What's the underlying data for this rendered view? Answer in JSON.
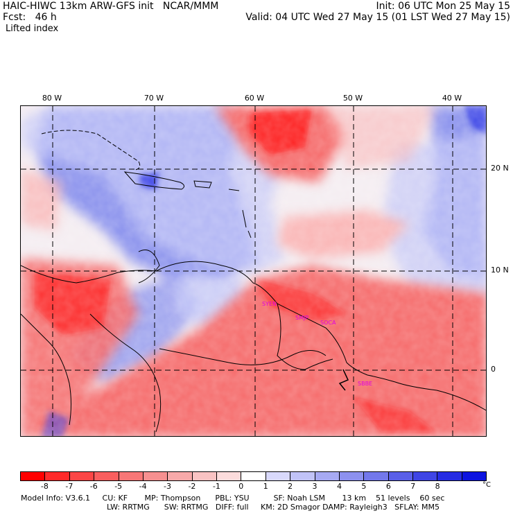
{
  "header": {
    "title_left": "HAIC-HIWC 13km ARW-GFS init   NCAR/MMM",
    "init": "Init: 06 UTC Mon 25 May 15",
    "fcst": "Fcst:   46 h",
    "valid": "Valid: 04 UTC Wed 27 May 15 (01 LST Wed 27 May 15)",
    "field": "Lifted index"
  },
  "map": {
    "lon_labels": [
      "80 W",
      "70 W",
      "60 W",
      "50 W",
      "40 W"
    ],
    "lat_labels": [
      "20 N",
      "10 N",
      "0"
    ],
    "cities": [
      "SYEN",
      "SMJP",
      "SOCA",
      "SBBE"
    ],
    "colors": {
      "strong_negative": "#ff1a1a",
      "negative": "#f66f6f",
      "slight_negative": "#fab8b8",
      "neutral": "#f6f0f4",
      "slight_positive": "#c4c8f8",
      "positive": "#8f96ee",
      "strong_positive": "#2a34e6"
    }
  },
  "colorbar": {
    "ticks": [
      "-8",
      "-7",
      "-6",
      "-5",
      "-4",
      "-3",
      "-2",
      "-1",
      "0",
      "1",
      "2",
      "3",
      "4",
      "5",
      "6",
      "7",
      "8"
    ],
    "unit": "°C",
    "colors": [
      "#ff0000",
      "#ff2a2a",
      "#fb4646",
      "#f95e5e",
      "#f77777",
      "#f69090",
      "#f7a9a9",
      "#f9c3c3",
      "#fcdcdc",
      "#ffffff",
      "#d9d9fb",
      "#c1c3f7",
      "#a7aaf3",
      "#8d91ef",
      "#7378eb",
      "#5a5fe8",
      "#3f45e5",
      "#262ce3",
      "#0d14e0"
    ]
  },
  "model_info": {
    "line1": "Model Info: V3.6.1     CU: KF       MP: Thompson      PBL: YSU          SF: Noah LSM       13 km    51 levels    60 sec",
    "line2": "LW: RRTMG      SW: RRTMG   DIFF: full     KM: 2D Smagor DAMP: Rayleigh3   SFLAY: MM5"
  }
}
